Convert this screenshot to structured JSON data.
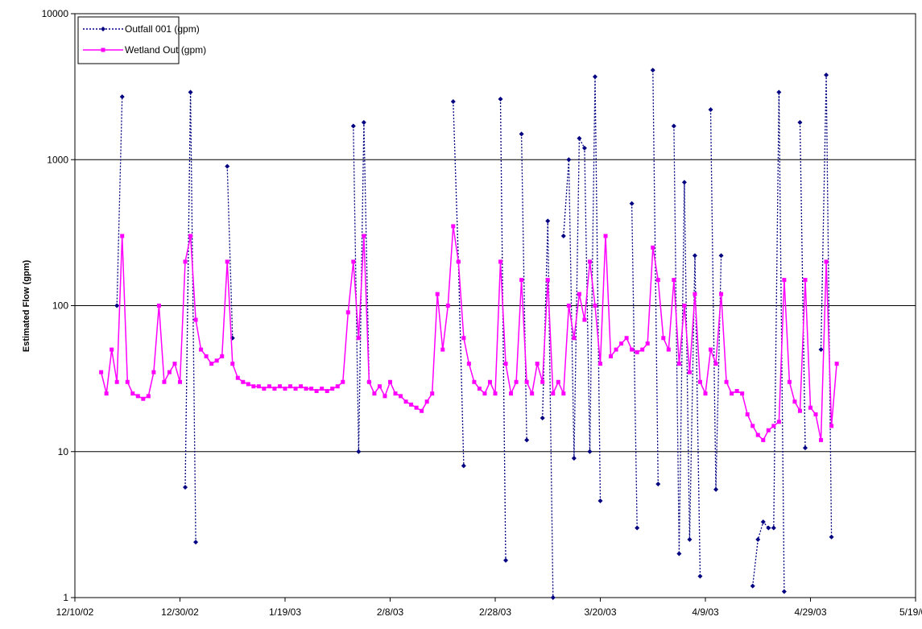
{
  "chart_data": {
    "type": "line",
    "y_label": "Estimated Flow (gpm)",
    "log_scale": true,
    "grid": true,
    "legend": "upper left",
    "xlim": [
      "12/10/02",
      "5/19/03"
    ],
    "xticks": [
      "12/10/02",
      "12/30/02",
      "1/19/03",
      "2/8/03",
      "2/28/03",
      "3/20/03",
      "4/9/03",
      "4/29/03",
      "5/19/03"
    ],
    "ylim": [
      1,
      10000
    ],
    "yticks": [
      1,
      10,
      100,
      1000,
      10000
    ],
    "x": [
      "12/15/02",
      "12/16/02",
      "12/17/02",
      "12/18/02",
      "12/19/02",
      "12/20/02",
      "12/21/02",
      "12/22/02",
      "12/23/02",
      "12/24/02",
      "12/25/02",
      "12/26/02",
      "12/27/02",
      "12/28/02",
      "12/29/02",
      "12/30/02",
      "12/31/02",
      "1/1/03",
      "1/2/03",
      "1/3/03",
      "1/4/03",
      "1/5/03",
      "1/6/03",
      "1/7/03",
      "1/8/03",
      "1/9/03",
      "1/10/03",
      "1/11/03",
      "1/12/03",
      "1/13/03",
      "1/14/03",
      "1/15/03",
      "1/16/03",
      "1/17/03",
      "1/18/03",
      "1/19/03",
      "1/20/03",
      "1/21/03",
      "1/22/03",
      "1/23/03",
      "1/24/03",
      "1/25/03",
      "1/26/03",
      "1/27/03",
      "1/28/03",
      "1/29/03",
      "1/30/03",
      "1/31/03",
      "2/1/03",
      "2/2/03",
      "2/3/03",
      "2/4/03",
      "2/5/03",
      "2/6/03",
      "2/7/03",
      "2/8/03",
      "2/9/03",
      "2/10/03",
      "2/11/03",
      "2/12/03",
      "2/13/03",
      "2/14/03",
      "2/15/03",
      "2/16/03",
      "2/17/03",
      "2/18/03",
      "2/19/03",
      "2/20/03",
      "2/21/03",
      "2/22/03",
      "2/23/03",
      "2/24/03",
      "2/25/03",
      "2/26/03",
      "2/27/03",
      "2/28/03",
      "3/1/03",
      "3/2/03",
      "3/3/03",
      "3/4/03",
      "3/5/03",
      "3/6/03",
      "3/7/03",
      "3/8/03",
      "3/9/03",
      "3/10/03",
      "3/11/03",
      "3/12/03",
      "3/13/03",
      "3/14/03",
      "3/15/03",
      "3/16/03",
      "3/17/03",
      "3/18/03",
      "3/19/03",
      "3/20/03",
      "3/21/03",
      "3/22/03",
      "3/23/03",
      "3/24/03",
      "3/25/03",
      "3/26/03",
      "3/27/03",
      "3/28/03",
      "3/29/03",
      "3/30/03",
      "3/31/03",
      "4/1/03",
      "4/2/03",
      "4/3/03",
      "4/4/03",
      "4/5/03",
      "4/6/03",
      "4/7/03",
      "4/8/03",
      "4/9/03",
      "4/10/03",
      "4/11/03",
      "4/12/03",
      "4/13/03",
      "4/14/03",
      "4/15/03",
      "4/16/03",
      "4/17/03",
      "4/18/03",
      "4/19/03",
      "4/20/03",
      "4/21/03",
      "4/22/03",
      "4/23/03",
      "4/24/03",
      "4/25/03",
      "4/26/03",
      "4/27/03",
      "4/28/03",
      "4/29/03",
      "4/30/03",
      "5/1/03",
      "5/2/03",
      "5/3/03",
      "5/4/03"
    ],
    "series": [
      {
        "name": "Outfall 001 (gpm)",
        "color": "#000080",
        "marker": "diamond",
        "dash": true,
        "values": [
          null,
          null,
          null,
          100,
          2700,
          null,
          null,
          null,
          null,
          null,
          null,
          null,
          null,
          null,
          null,
          null,
          5.7,
          2900,
          2.4,
          null,
          null,
          null,
          null,
          null,
          900,
          60,
          null,
          null,
          null,
          null,
          null,
          null,
          null,
          null,
          null,
          null,
          null,
          null,
          null,
          null,
          null,
          null,
          null,
          null,
          null,
          null,
          null,
          null,
          1700,
          10,
          1800,
          30,
          null,
          null,
          null,
          null,
          null,
          null,
          null,
          null,
          null,
          null,
          null,
          null,
          null,
          null,
          null,
          2500,
          200,
          8,
          null,
          null,
          null,
          null,
          null,
          null,
          2600,
          1.8,
          null,
          null,
          1500,
          12,
          null,
          null,
          17,
          380,
          1,
          null,
          300,
          1000,
          9,
          1400,
          1200,
          10,
          3700,
          4.6,
          null,
          null,
          null,
          null,
          null,
          500,
          3,
          null,
          null,
          4100,
          6,
          null,
          null,
          1700,
          2,
          700,
          2.5,
          220,
          1.4,
          null,
          2200,
          5.5,
          220,
          null,
          null,
          null,
          null,
          null,
          1.2,
          2.5,
          3.3,
          3,
          3,
          2900,
          1.1,
          null,
          null,
          1800,
          10.6,
          null,
          null,
          50,
          3800,
          2.6,
          null
        ]
      },
      {
        "name": "Wetland Out (gpm)",
        "color": "#ff00ff",
        "marker": "square",
        "dash": false,
        "values": [
          35,
          25,
          50,
          30,
          300,
          30,
          25,
          24,
          23,
          24,
          35,
          100,
          30,
          35,
          40,
          30,
          200,
          300,
          80,
          50,
          45,
          40,
          42,
          45,
          200,
          40,
          32,
          30,
          29,
          28,
          28,
          27,
          28,
          27,
          28,
          27,
          28,
          27,
          28,
          27,
          27,
          26,
          27,
          26,
          27,
          28,
          30,
          90,
          200,
          60,
          300,
          30,
          25,
          28,
          24,
          30,
          25,
          24,
          22,
          21,
          20,
          19,
          22,
          25,
          120,
          50,
          100,
          350,
          200,
          60,
          40,
          30,
          27,
          25,
          30,
          25,
          200,
          40,
          25,
          30,
          150,
          30,
          25,
          40,
          30,
          150,
          25,
          30,
          25,
          100,
          60,
          120,
          80,
          200,
          100,
          40,
          300,
          45,
          50,
          55,
          60,
          50,
          48,
          50,
          55,
          250,
          150,
          60,
          50,
          150,
          40,
          100,
          35,
          120,
          30,
          25,
          50,
          40,
          120,
          30,
          25,
          26,
          25,
          18,
          15,
          13,
          12,
          14,
          15,
          16,
          150,
          30,
          22,
          19,
          150,
          20,
          18,
          12,
          200,
          15,
          40
        ]
      }
    ]
  }
}
